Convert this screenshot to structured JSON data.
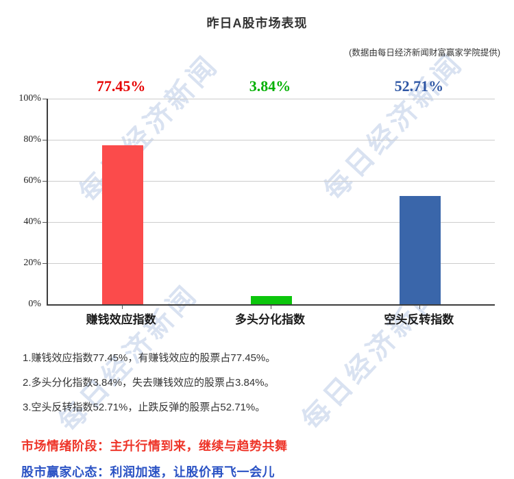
{
  "title": "昨日A股市场表现",
  "subtitle": "(数据由每日经济新闻财富赢家学院提供)",
  "watermark": {
    "text": "每日经济新闻"
  },
  "chart_data": {
    "type": "bar",
    "title": "昨日A股市场表现",
    "categories": [
      "赚钱效应指数",
      "多头分化指数",
      "空头反转指数"
    ],
    "values": [
      77.45,
      3.84,
      52.71
    ],
    "value_labels": [
      "77.45%",
      "3.84%",
      "52.71%"
    ],
    "bar_colors": [
      "#fb4b4b",
      "#0cc60c",
      "#3a66aa"
    ],
    "value_label_colors": [
      "#e60000",
      "#00b000",
      "#2e56a4"
    ],
    "y_tick_labels": [
      "100%",
      "80%",
      "60%",
      "40%",
      "20%",
      "0%"
    ],
    "ylim": [
      0,
      100
    ],
    "grid": true,
    "legend": false,
    "xlabel": "",
    "ylabel": ""
  },
  "notes": [
    "1.赚钱效应指数77.45%，有赚钱效应的股票占77.45%。",
    "2.多头分化指数3.84%，失去赚钱效应的股票占3.84%。",
    "3.空头反转指数52.71%，止跌反弹的股票占52.71%。"
  ],
  "footer": {
    "sentiment": "市场情绪阶段：主升行情到来，继续与趋势共舞",
    "sentiment_color": "#ee3428",
    "mentality": "股市赢家心态：利润加速，让股价再飞一会儿",
    "mentality_color": "#2a52c4"
  }
}
